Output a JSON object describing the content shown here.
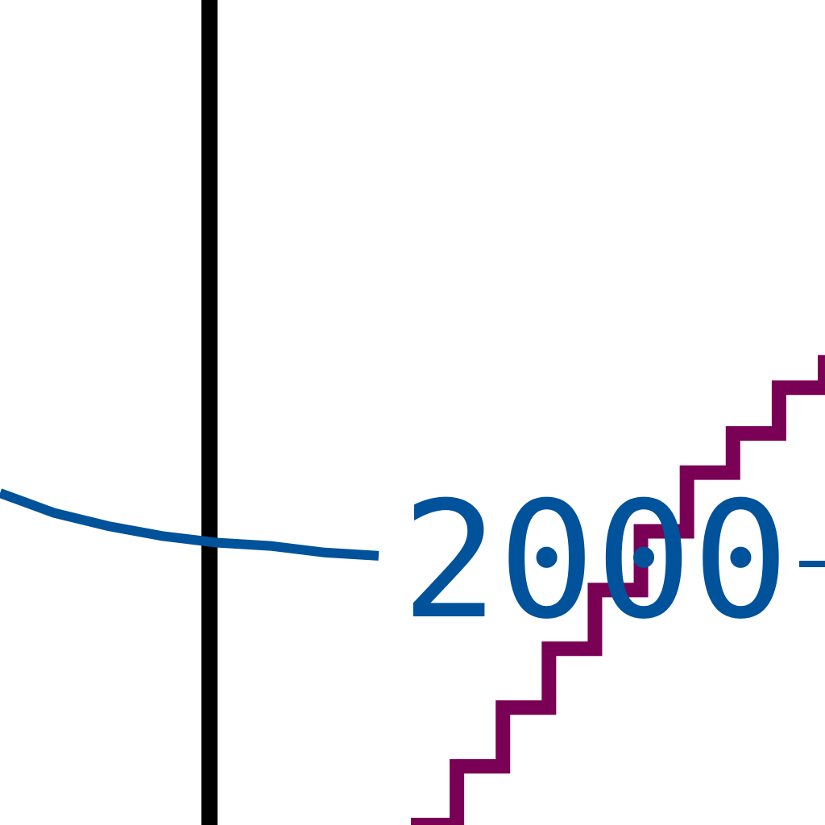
{
  "chart_data": {
    "type": "line",
    "title": "",
    "xlabel": "",
    "ylabel": "",
    "grid": false,
    "tick_labels": [
      {
        "text": "2000",
        "color": "#00529b"
      }
    ],
    "series": [
      {
        "color": "#00529b",
        "x": [
          0,
          1,
          2,
          3,
          4,
          5,
          6,
          7
        ],
        "y": [
          0.0,
          -0.12,
          -0.2,
          -0.26,
          -0.3,
          -0.32,
          -0.36,
          -0.38
        ]
      },
      {
        "color": "#7a0055",
        "x": [
          0,
          1,
          2,
          3,
          4,
          5,
          6,
          7,
          8,
          9
        ],
        "y": [
          0.0,
          0.45,
          0.9,
          1.35,
          1.8,
          2.25,
          2.7,
          3.0,
          3.35,
          3.6
        ]
      }
    ]
  }
}
